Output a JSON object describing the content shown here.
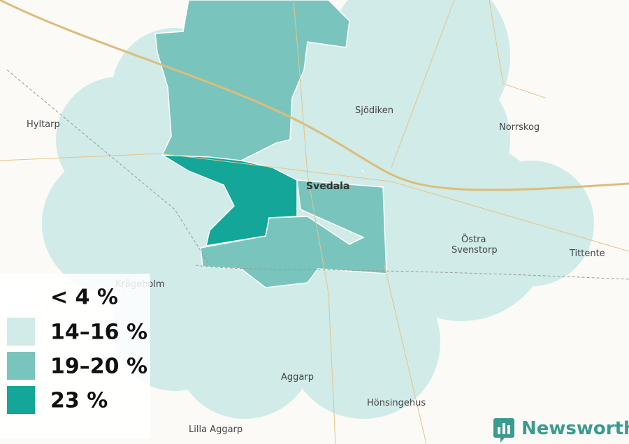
{
  "map": {
    "places": [
      "Hyltarp",
      "Sjödiken",
      "Norrskog",
      "Svedala",
      "Östra",
      "Svenstorp",
      "Tittente",
      "Krågeholm",
      "Aggarp",
      "Hönsingehus",
      "Lilla Aggarp"
    ],
    "legend": {
      "items": [
        {
          "label": "< 4 %",
          "color": "#ffffff"
        },
        {
          "label": "14–16 %",
          "color": "#d0ebe8"
        },
        {
          "label": "19–20 %",
          "color": "#79c5bd"
        },
        {
          "label": "23 %",
          "color": "#14a698"
        }
      ]
    },
    "brand": "Newsworthy",
    "brand_color": "#3a9b8f"
  }
}
